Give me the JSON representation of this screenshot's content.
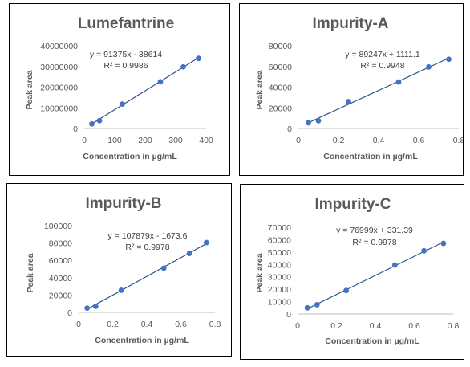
{
  "chart_data": [
    {
      "type": "scatter",
      "title": "Lumefantrine",
      "xlabel": "Concentration in µg/mL",
      "ylabel": "Peak area",
      "xlim": [
        0,
        400
      ],
      "ylim": [
        0,
        40000000
      ],
      "xticks": [
        0,
        100,
        200,
        300,
        400
      ],
      "xtick_labels": [
        "0",
        "100",
        "200",
        "300",
        "400"
      ],
      "yticks": [
        0,
        10000000,
        20000000,
        30000000,
        40000000
      ],
      "ytick_labels": [
        "0",
        "10000000",
        "20000000",
        "30000000",
        "40000000"
      ],
      "trendline": {
        "slope": 91375,
        "intercept": -38614
      },
      "equation": "y = 91375x - 38614",
      "r_squared": "R² = 0.9986",
      "x": [
        25,
        50,
        125,
        250,
        325,
        375
      ],
      "y": [
        2200000,
        3800000,
        11800000,
        22600000,
        29800000,
        33900000
      ],
      "marker_color": "#4472C4",
      "line_color": "#2F528F",
      "grid": false
    },
    {
      "type": "scatter",
      "title": "Impurity-A",
      "xlabel": "Concentration in µg/mL",
      "ylabel": "Peak area",
      "xlim": [
        0,
        0.8
      ],
      "ylim": [
        0,
        80000
      ],
      "xticks": [
        0,
        0.2,
        0.4,
        0.6,
        0.8
      ],
      "xtick_labels": [
        "0",
        "0.2",
        "0.4",
        "0.6",
        "0.8"
      ],
      "yticks": [
        0,
        20000,
        40000,
        60000,
        80000
      ],
      "ytick_labels": [
        "0",
        "20000",
        "40000",
        "60000",
        "80000"
      ],
      "trendline": {
        "slope": 89247,
        "intercept": 1111.1
      },
      "equation": "y = 89247x + 1111.1",
      "r_squared": "R² = 0.9948",
      "x": [
        0.05,
        0.1,
        0.25,
        0.5,
        0.65,
        0.75
      ],
      "y": [
        5500,
        7500,
        26000,
        45000,
        59500,
        67000
      ],
      "marker_color": "#4472C4",
      "line_color": "#2F528F",
      "grid": false
    },
    {
      "type": "scatter",
      "title": "Impurity-B",
      "xlabel": "Concentration in µg/mL",
      "ylabel": "Peak area",
      "xlim": [
        0,
        0.8
      ],
      "ylim": [
        0,
        100000
      ],
      "xticks": [
        0,
        0.2,
        0.4,
        0.6,
        0.8
      ],
      "xtick_labels": [
        "0",
        "0.2",
        "0.4",
        "0.6",
        "0.8"
      ],
      "yticks": [
        0,
        20000,
        40000,
        60000,
        80000,
        100000
      ],
      "ytick_labels": [
        "0",
        "20000",
        "40000",
        "60000",
        "80000",
        "100000"
      ],
      "trendline": {
        "slope": 107879,
        "intercept": -1673.6
      },
      "equation": "y = 107879x - 1673.6",
      "r_squared": "R² = 0.9978",
      "x": [
        0.05,
        0.1,
        0.25,
        0.5,
        0.65,
        0.75
      ],
      "y": [
        5000,
        7000,
        25500,
        51000,
        68000,
        80500
      ],
      "marker_color": "#4472C4",
      "line_color": "#2F528F",
      "grid": false
    },
    {
      "type": "scatter",
      "title": "Impurity-C",
      "xlabel": "Concentration in µg/mL",
      "ylabel": "Peak area",
      "xlim": [
        0,
        0.8
      ],
      "ylim": [
        0,
        70000
      ],
      "xticks": [
        0,
        0.2,
        0.4,
        0.6,
        0.8
      ],
      "xtick_labels": [
        "0",
        "0.2",
        "0.4",
        "0.6",
        "0.8"
      ],
      "yticks": [
        0,
        10000,
        20000,
        30000,
        40000,
        50000,
        60000,
        70000
      ],
      "ytick_labels": [
        "0",
        "10000",
        "20000",
        "30000",
        "40000",
        "50000",
        "60000",
        "70000"
      ],
      "trendline": {
        "slope": 76999,
        "intercept": 331.39
      },
      "equation": "y = 76999x + 331.39",
      "r_squared": "R² = 0.9978",
      "x": [
        0.05,
        0.1,
        0.25,
        0.5,
        0.65,
        0.75
      ],
      "y": [
        5000,
        7500,
        19000,
        39500,
        51000,
        57000
      ],
      "marker_color": "#4472C4",
      "line_color": "#2F528F",
      "grid": false
    }
  ]
}
